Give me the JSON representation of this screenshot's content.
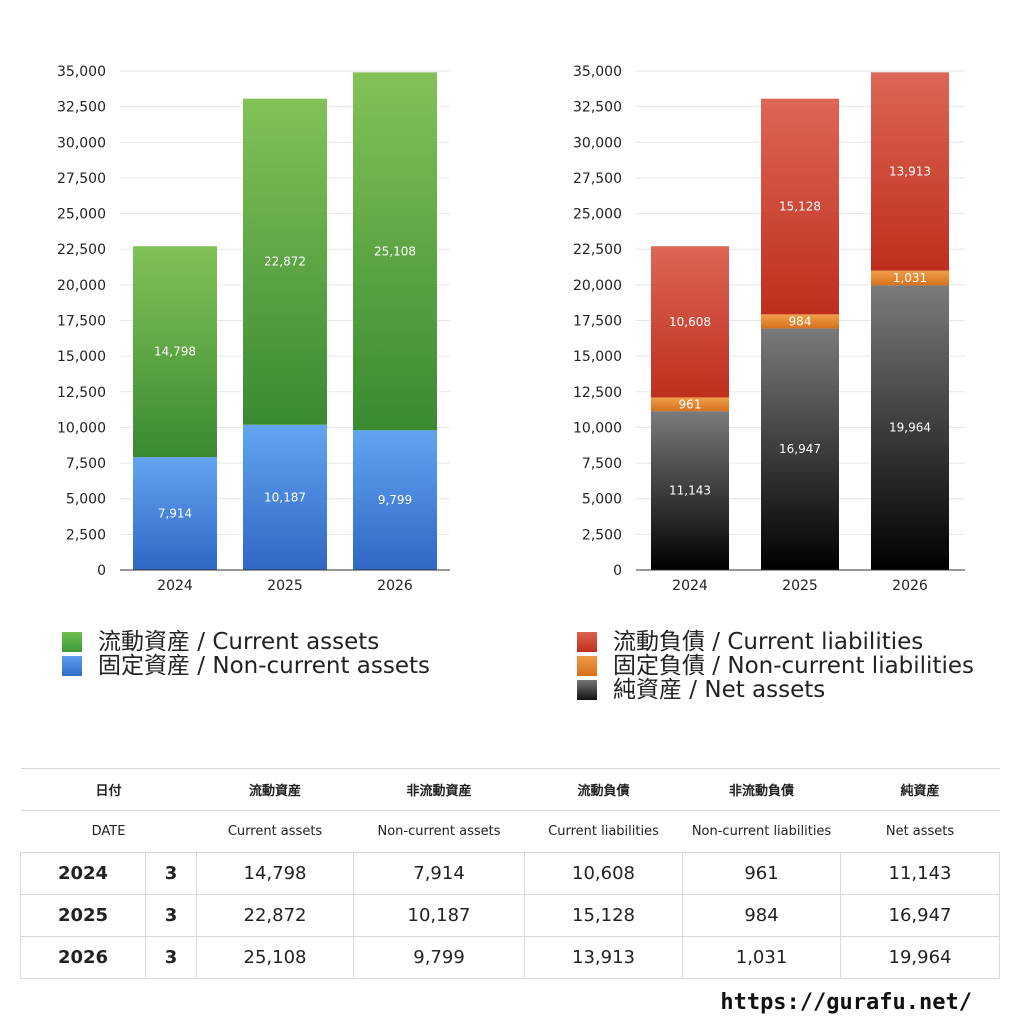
{
  "chart_data": [
    {
      "type": "bar",
      "stacked": true,
      "categories": [
        "2024",
        "2025",
        "2026"
      ],
      "ylim": [
        0,
        35000
      ],
      "yticks": [
        0,
        2500,
        5000,
        7500,
        10000,
        12500,
        15000,
        17500,
        20000,
        22500,
        25000,
        27500,
        30000,
        32500,
        35000
      ],
      "yticklabels": [
        "0",
        "2,500",
        "5,000",
        "7,500",
        "10,000",
        "12,500",
        "15,000",
        "17,500",
        "20,000",
        "22,500",
        "25,000",
        "27,500",
        "30,000",
        "32,500",
        "35,000"
      ],
      "grid": true,
      "series": [
        {
          "name": "固定資産 / Non-current assets",
          "values": [
            7914,
            10187,
            9799
          ],
          "labels": [
            "7,914",
            "10,187",
            "9,799"
          ],
          "color": "#3f80d9"
        },
        {
          "name": "流動資産 / Current assets",
          "values": [
            14798,
            22872,
            25108
          ],
          "labels": [
            "14,798",
            "22,872",
            "25,108"
          ],
          "color": "#4ea443"
        }
      ]
    },
    {
      "type": "bar",
      "stacked": true,
      "categories": [
        "2024",
        "2025",
        "2026"
      ],
      "ylim": [
        0,
        35000
      ],
      "yticks": [
        0,
        2500,
        5000,
        7500,
        10000,
        12500,
        15000,
        17500,
        20000,
        22500,
        25000,
        27500,
        30000,
        32500,
        35000
      ],
      "yticklabels": [
        "0",
        "2,500",
        "5,000",
        "7,500",
        "10,000",
        "12,500",
        "15,000",
        "17,500",
        "20,000",
        "22,500",
        "25,000",
        "27,500",
        "30,000",
        "32,500",
        "35,000"
      ],
      "grid": true,
      "series": [
        {
          "name": "純資産 / Net assets",
          "values": [
            11143,
            16947,
            19964
          ],
          "labels": [
            "11,143",
            "16,947",
            "19,964"
          ],
          "color": "#333333"
        },
        {
          "name": "固定負債 / Non-current liabilities",
          "values": [
            961,
            984,
            1031
          ],
          "labels": [
            "961",
            "984",
            "1,031"
          ],
          "color": "#e07f28"
        },
        {
          "name": "流動負債 / Current liabilities",
          "values": [
            10608,
            15128,
            13913
          ],
          "labels": [
            "10,608",
            "15,128",
            "13,913"
          ],
          "color": "#cc3b28"
        }
      ]
    }
  ],
  "legend_left": [
    {
      "label": "流動資産 / Current assets",
      "color": "#4ea443"
    },
    {
      "label": "固定資産 / Non-current assets",
      "color": "#3f80d9"
    }
  ],
  "legend_right": [
    {
      "label": "流動負債 / Current liabilities",
      "color": "#cc3b28"
    },
    {
      "label": "固定負債 / Non-current liabilities",
      "color": "#e07f28"
    },
    {
      "label": "純資産 / Net assets",
      "color": "#333333"
    }
  ],
  "table": {
    "header_jp": [
      "日付",
      "流動資産",
      "非流動資産",
      "流動負債",
      "非流動負債",
      "純資産"
    ],
    "header_en": [
      "DATE",
      "Current assets",
      "Non-current assets",
      "Current liabilities",
      "Non-current liabilities",
      "Net assets"
    ],
    "rows": [
      {
        "year": "2024",
        "month": "3",
        "values": [
          "14,798",
          "7,914",
          "10,608",
          "961",
          "11,143"
        ]
      },
      {
        "year": "2025",
        "month": "3",
        "values": [
          "22,872",
          "10,187",
          "15,128",
          "984",
          "16,947"
        ]
      },
      {
        "year": "2026",
        "month": "3",
        "values": [
          "25,108",
          "9,799",
          "13,913",
          "1,031",
          "19,964"
        ]
      }
    ]
  },
  "source": "https://gurafu.net/"
}
